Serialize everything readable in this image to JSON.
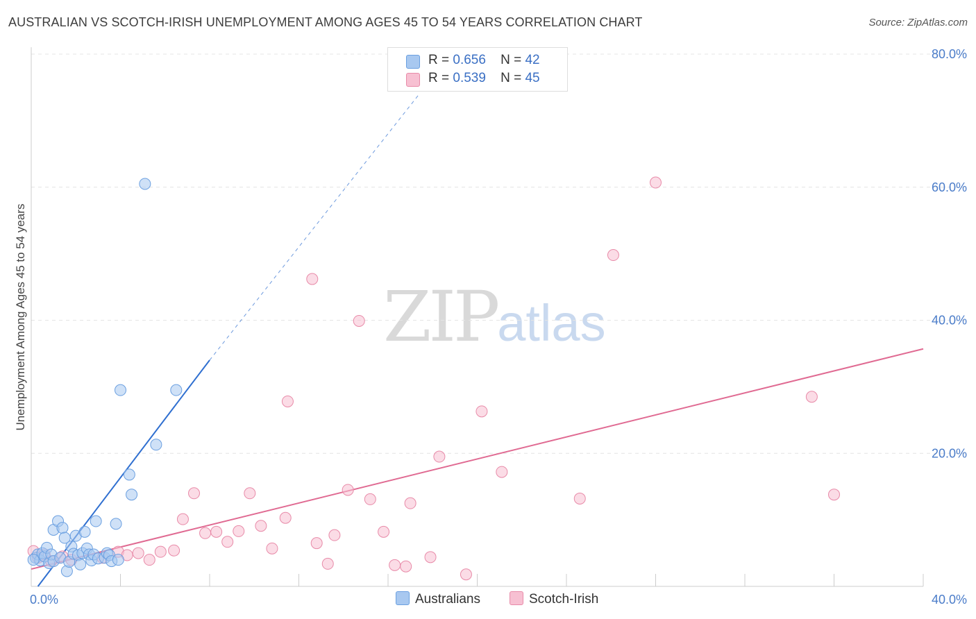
{
  "title": "AUSTRALIAN VS SCOTCH-IRISH UNEMPLOYMENT AMONG AGES 45 TO 54 YEARS CORRELATION CHART",
  "source": "Source: ZipAtlas.com",
  "watermark": {
    "zip": "ZIP",
    "atlas": "atlas"
  },
  "legend": {
    "r_label": "R =",
    "n_label": "N =",
    "rows": [
      {
        "r": "0.656",
        "n": "42",
        "color": "#a8c8f0"
      },
      {
        "r": "0.539",
        "n": "45",
        "color": "#f5b8cb"
      }
    ]
  },
  "bottom_legend": [
    {
      "label": "Australians",
      "color": "#a8c8f0"
    },
    {
      "label": "Scotch-Irish",
      "color": "#f5b8cb"
    }
  ],
  "colors": {
    "blue_fill": "#a8c8f0",
    "blue_stroke": "#6a9fe0",
    "blue_line": "#2f6fd0",
    "pink_fill": "#f7c0d2",
    "pink_stroke": "#e88aa8",
    "pink_line": "#e06a92",
    "grid": "#e4e4e4"
  },
  "chart_data": {
    "type": "scatter",
    "title": "AUSTRALIAN VS SCOTCH-IRISH UNEMPLOYMENT AMONG AGES 45 TO 54 YEARS CORRELATION CHART",
    "xlabel": "",
    "ylabel": "Unemployment Among Ages 45 to 54 years",
    "xlim": [
      0,
      40
    ],
    "ylim": [
      0,
      80
    ],
    "x_tick_labels": [
      "0.0%",
      "40.0%"
    ],
    "y_ticks": [
      20,
      40,
      60,
      80
    ],
    "y_tick_labels": [
      "20.0%",
      "40.0%",
      "60.0%",
      "80.0%"
    ],
    "series": [
      {
        "name": "Australians",
        "points": [
          [
            0.2,
            4.3
          ],
          [
            0.3,
            4.8
          ],
          [
            0.4,
            3.9
          ],
          [
            0.5,
            5.0
          ],
          [
            0.6,
            4.5
          ],
          [
            0.7,
            5.8
          ],
          [
            0.8,
            3.5
          ],
          [
            0.9,
            4.8
          ],
          [
            1.0,
            8.5
          ],
          [
            1.0,
            3.8
          ],
          [
            1.2,
            9.8
          ],
          [
            1.3,
            4.3
          ],
          [
            1.4,
            8.8
          ],
          [
            1.5,
            7.3
          ],
          [
            1.6,
            2.3
          ],
          [
            1.7,
            3.7
          ],
          [
            1.8,
            6.0
          ],
          [
            1.9,
            4.9
          ],
          [
            2.0,
            7.6
          ],
          [
            2.1,
            4.7
          ],
          [
            2.2,
            3.3
          ],
          [
            2.3,
            5.0
          ],
          [
            2.4,
            8.2
          ],
          [
            2.5,
            5.7
          ],
          [
            2.6,
            4.8
          ],
          [
            2.7,
            3.9
          ],
          [
            2.8,
            4.8
          ],
          [
            2.9,
            9.8
          ],
          [
            3.0,
            4.2
          ],
          [
            3.3,
            4.3
          ],
          [
            3.4,
            5.0
          ],
          [
            3.5,
            4.7
          ],
          [
            3.6,
            3.8
          ],
          [
            3.8,
            9.4
          ],
          [
            3.9,
            4.0
          ],
          [
            4.0,
            29.5
          ],
          [
            4.4,
            16.8
          ],
          [
            4.5,
            13.8
          ],
          [
            5.1,
            60.5
          ],
          [
            5.6,
            21.3
          ],
          [
            6.5,
            29.5
          ],
          [
            0.1,
            4.0
          ]
        ],
        "trend": {
          "x0": 0.3,
          "y0": 0.0,
          "x1": 8.0,
          "y1": 34.0,
          "dash_to_x": 17.4,
          "dash_to_y": 74.0
        }
      },
      {
        "name": "Scotch-Irish",
        "points": [
          [
            0.1,
            5.3
          ],
          [
            0.3,
            4.3
          ],
          [
            0.6,
            4.8
          ],
          [
            0.9,
            3.8
          ],
          [
            1.4,
            4.5
          ],
          [
            1.8,
            4.0
          ],
          [
            3.2,
            4.3
          ],
          [
            3.9,
            5.2
          ],
          [
            4.3,
            4.7
          ],
          [
            4.8,
            5.0
          ],
          [
            5.3,
            4.0
          ],
          [
            5.8,
            5.2
          ],
          [
            6.4,
            5.4
          ],
          [
            6.8,
            10.1
          ],
          [
            7.3,
            14.0
          ],
          [
            7.8,
            8.0
          ],
          [
            8.3,
            8.2
          ],
          [
            8.8,
            6.7
          ],
          [
            9.3,
            8.3
          ],
          [
            9.8,
            14.0
          ],
          [
            10.3,
            9.1
          ],
          [
            10.8,
            5.7
          ],
          [
            11.4,
            10.3
          ],
          [
            11.5,
            27.8
          ],
          [
            12.6,
            46.2
          ],
          [
            12.8,
            6.5
          ],
          [
            13.3,
            3.4
          ],
          [
            13.6,
            7.7
          ],
          [
            14.2,
            14.5
          ],
          [
            14.7,
            39.9
          ],
          [
            15.2,
            13.1
          ],
          [
            15.8,
            8.2
          ],
          [
            16.3,
            3.2
          ],
          [
            16.8,
            3.0
          ],
          [
            17.0,
            12.5
          ],
          [
            17.9,
            4.4
          ],
          [
            18.3,
            19.5
          ],
          [
            19.5,
            1.8
          ],
          [
            20.2,
            26.3
          ],
          [
            21.1,
            17.2
          ],
          [
            24.6,
            13.2
          ],
          [
            26.1,
            49.8
          ],
          [
            28.0,
            60.7
          ],
          [
            35.0,
            28.5
          ],
          [
            36.0,
            13.8
          ]
        ],
        "trend": {
          "x0": 0.0,
          "y0": 2.6,
          "x1": 40.0,
          "y1": 35.7
        }
      }
    ]
  }
}
